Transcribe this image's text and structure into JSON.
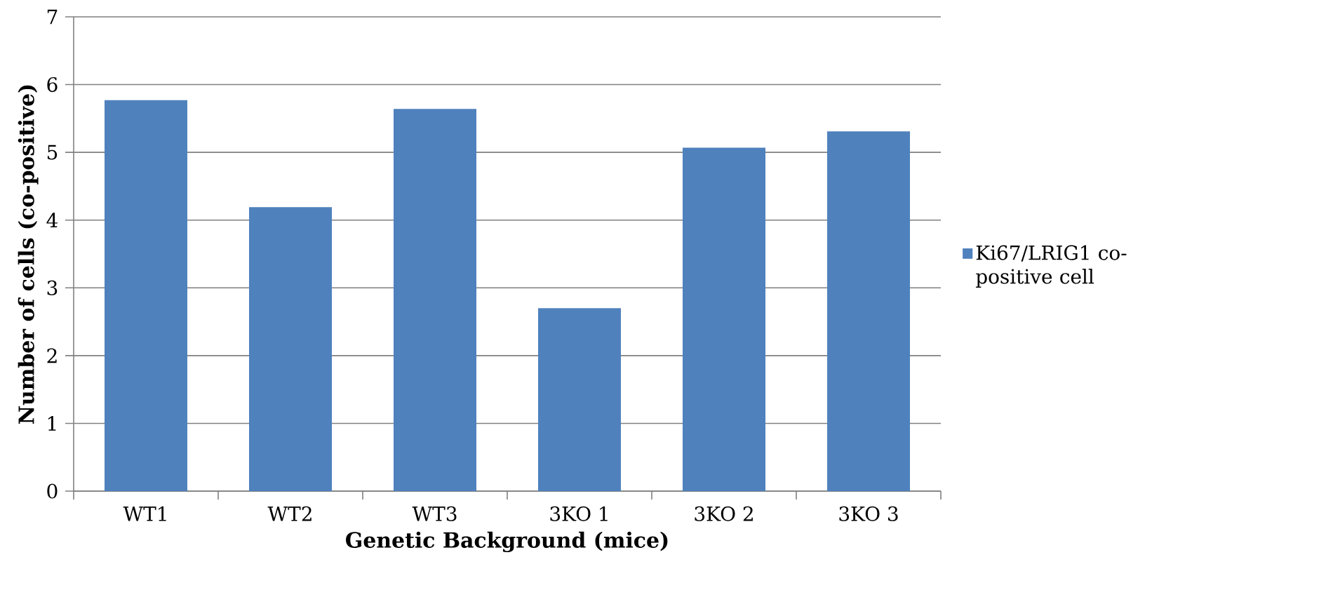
{
  "chart_data": {
    "type": "bar",
    "xlabel": "Genetic Background (mice)",
    "ylabel": "Number of cells (co-positive)",
    "categories": [
      "WT1",
      "WT2",
      "WT3",
      "3KO 1",
      "3KO 2",
      "3KO 3"
    ],
    "series": [
      {
        "name": "Ki67/LRIG1 co-positive cell",
        "color": "#4f81bd",
        "values": [
          5.77,
          4.19,
          5.64,
          2.7,
          5.07,
          5.31
        ]
      }
    ],
    "ylim": [
      0,
      7
    ],
    "yticks": [
      0,
      1,
      2,
      3,
      4,
      5,
      6,
      7
    ],
    "grid": "y",
    "legend": "right"
  }
}
